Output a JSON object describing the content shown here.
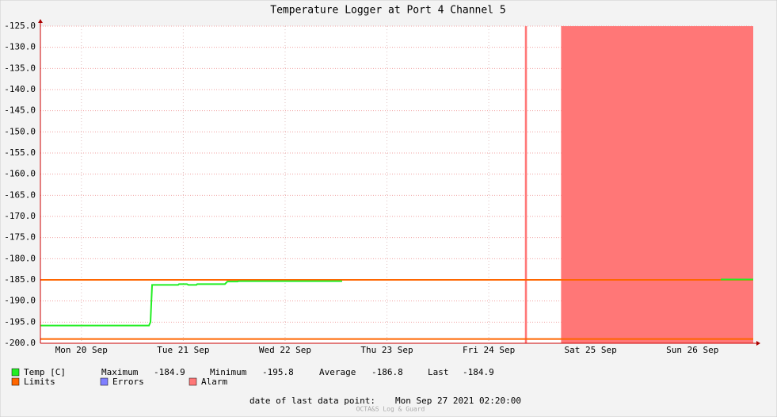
{
  "chart_data": {
    "type": "line",
    "title": "Temperature Logger at Port 4 Channel 5",
    "xlim": [
      20.097,
      27.097
    ],
    "xticks": [
      {
        "value": 20.5,
        "label": "Mon 20 Sep"
      },
      {
        "value": 21.5,
        "label": "Tue 21 Sep"
      },
      {
        "value": 22.5,
        "label": "Wed 22 Sep"
      },
      {
        "value": 23.5,
        "label": "Thu 23 Sep"
      },
      {
        "value": 24.5,
        "label": "Fri 24 Sep"
      },
      {
        "value": 25.5,
        "label": "Sat 25 Sep"
      },
      {
        "value": 26.5,
        "label": "Sun 26 Sep"
      }
    ],
    "ylim": [
      -200,
      -125
    ],
    "yticks": [
      {
        "value": -125,
        "label": "-125.0"
      },
      {
        "value": -130,
        "label": "-130.0"
      },
      {
        "value": -135,
        "label": "-135.0"
      },
      {
        "value": -140,
        "label": "-140.0"
      },
      {
        "value": -145,
        "label": "-145.0"
      },
      {
        "value": -150,
        "label": "-150.0"
      },
      {
        "value": -155,
        "label": "-155.0"
      },
      {
        "value": -160,
        "label": "-160.0"
      },
      {
        "value": -165,
        "label": "-165.0"
      },
      {
        "value": -170,
        "label": "-170.0"
      },
      {
        "value": -175,
        "label": "-175.0"
      },
      {
        "value": -180,
        "label": "-180.0"
      },
      {
        "value": -185,
        "label": "-185.0"
      },
      {
        "value": -190,
        "label": "-190.0"
      },
      {
        "value": -195,
        "label": "-195.0"
      },
      {
        "value": -200,
        "label": "-200.0"
      }
    ],
    "grid": true,
    "series": [
      {
        "name": "Temp [C]",
        "color": "#22ee22",
        "x": [
          20.097,
          21.163,
          21.178,
          21.194,
          21.45,
          21.458,
          21.536,
          21.551,
          21.629,
          21.637,
          21.909,
          21.933,
          22.034,
          22.041,
          23.06,
          null,
          26.778,
          27.097
        ],
        "values": [
          -195.8,
          -195.8,
          -195.0,
          -186.2,
          -186.2,
          -186.0,
          -186.0,
          -186.2,
          -186.2,
          -186.0,
          -186.0,
          -185.4,
          -185.4,
          -185.3,
          -185.3,
          null,
          -184.9,
          -184.9
        ]
      }
    ],
    "limits": {
      "name": "Limits",
      "color": "#ff6600",
      "values": [
        -185,
        -199
      ]
    },
    "errors": {
      "name": "Errors",
      "color": "#7f7fff"
    },
    "alarm": {
      "name": "Alarm",
      "color": "#ff7777",
      "ranges": [
        [
          24.855,
          24.875
        ],
        [
          25.21,
          27.097
        ]
      ]
    },
    "stats": [
      {
        "label": "Maximum",
        "value": -184.9
      },
      {
        "label": "Minimum",
        "value": -195.8
      },
      {
        "label": "Average",
        "value": -186.8
      },
      {
        "label": "Last",
        "value": -184.9
      }
    ],
    "footer_label": "date of last data point:",
    "footer_date": "Mon Sep 27 2021 02:20:00",
    "watermark": "OCTA&S Log & Guard"
  }
}
